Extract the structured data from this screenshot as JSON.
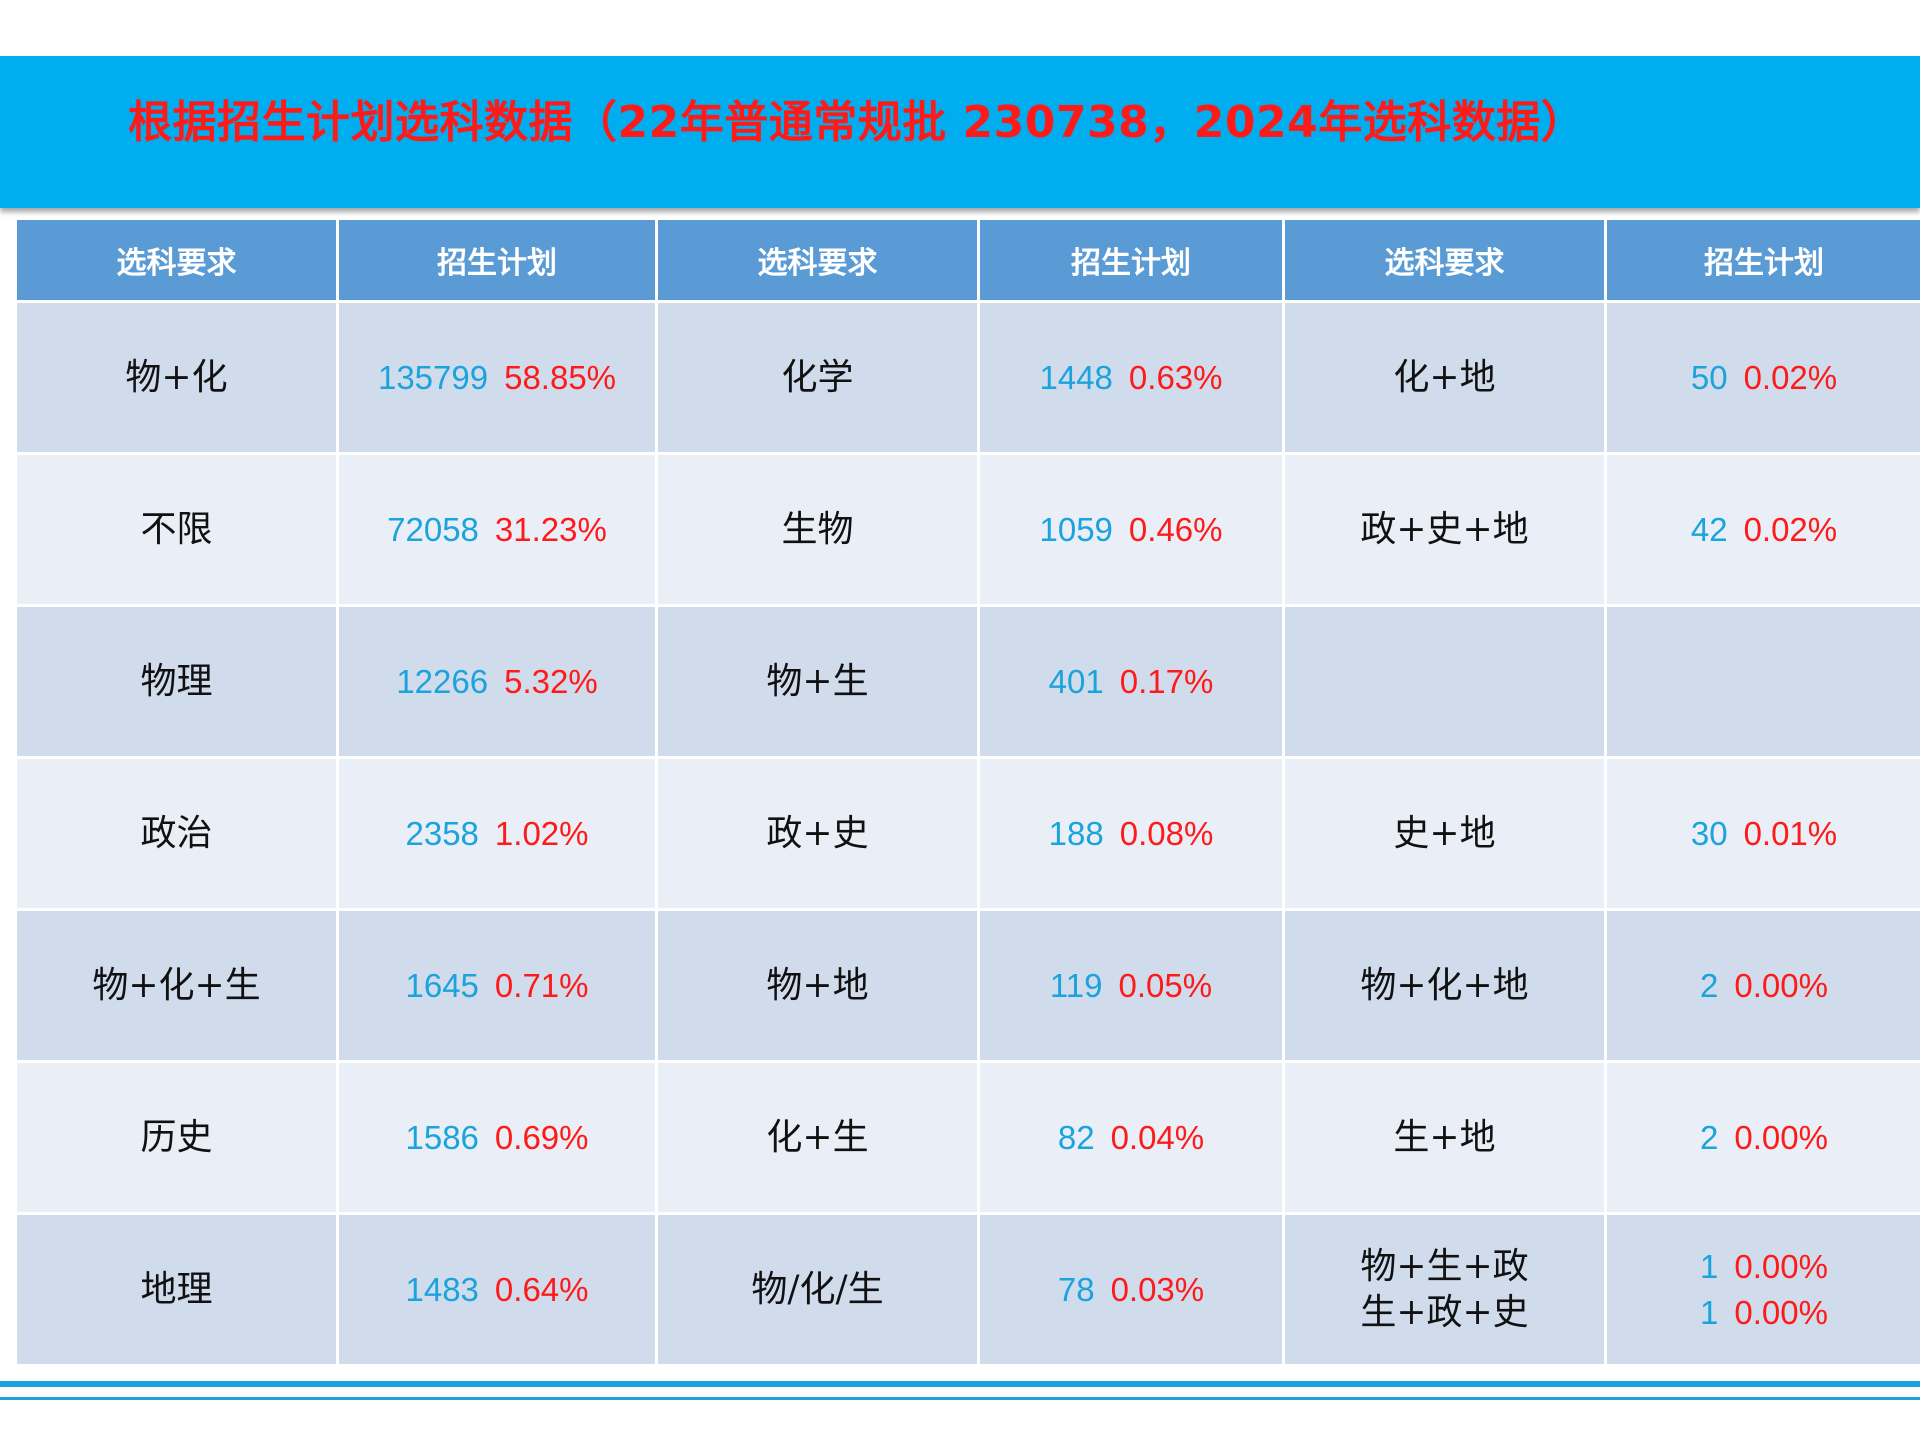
{
  "title": "根据招生计划选科数据（22年普通常规批 230738，2024年选科数据）",
  "headers": [
    "选科要求",
    "招生计划",
    "选科要求",
    "招生计划",
    "选科要求",
    "招生计划"
  ],
  "rows": [
    [
      {
        "subject": "物+化",
        "count": "135799",
        "percent": "58.85%"
      },
      {
        "subject": "化学",
        "count": "1448",
        "percent": "0.63%"
      },
      {
        "subject": "化+地",
        "count": "50",
        "percent": "0.02%"
      }
    ],
    [
      {
        "subject": "不限",
        "count": "72058",
        "percent": "31.23%"
      },
      {
        "subject": "生物",
        "count": "1059",
        "percent": "0.46%"
      },
      {
        "subject": "政+史+地",
        "count": "42",
        "percent": "0.02%"
      }
    ],
    [
      {
        "subject": "物理",
        "count": "12266",
        "percent": "5.32%"
      },
      {
        "subject": "物+生",
        "count": "401",
        "percent": "0.17%"
      },
      {
        "subject": "",
        "count": "",
        "percent": ""
      }
    ],
    [
      {
        "subject": "政治",
        "count": "2358",
        "percent": "1.02%"
      },
      {
        "subject": "政+史",
        "count": "188",
        "percent": "0.08%"
      },
      {
        "subject": "史+地",
        "count": "30",
        "percent": "0.01%"
      }
    ],
    [
      {
        "subject": "物+化+生",
        "count": "1645",
        "percent": "0.71%"
      },
      {
        "subject": "物+地",
        "count": "119",
        "percent": "0.05%"
      },
      {
        "subject": "物+化+地",
        "count": "2",
        "percent": "0.00%"
      }
    ],
    [
      {
        "subject": "历史",
        "count": "1586",
        "percent": "0.69%"
      },
      {
        "subject": "化+生",
        "count": "82",
        "percent": "0.04%"
      },
      {
        "subject": "生+地",
        "count": "2",
        "percent": "0.00%"
      }
    ],
    [
      {
        "subject": "地理",
        "count": "1483",
        "percent": "0.64%"
      },
      {
        "subject": "物/化/生",
        "count": "78",
        "percent": "0.03%"
      },
      {
        "subject": "物+生+政",
        "count": "1",
        "percent": "0.00%",
        "subject2": "生+政+史",
        "count2": "1",
        "percent2": "0.00%"
      }
    ]
  ],
  "colors": {
    "banner": "#00adef",
    "title": "#ff1a1a",
    "header_bg": "#5b9bd5",
    "row_dark": "#d0dcec",
    "row_light": "#e9eef7",
    "count": "#1aa3dc",
    "percent": "#ff1a1a"
  }
}
